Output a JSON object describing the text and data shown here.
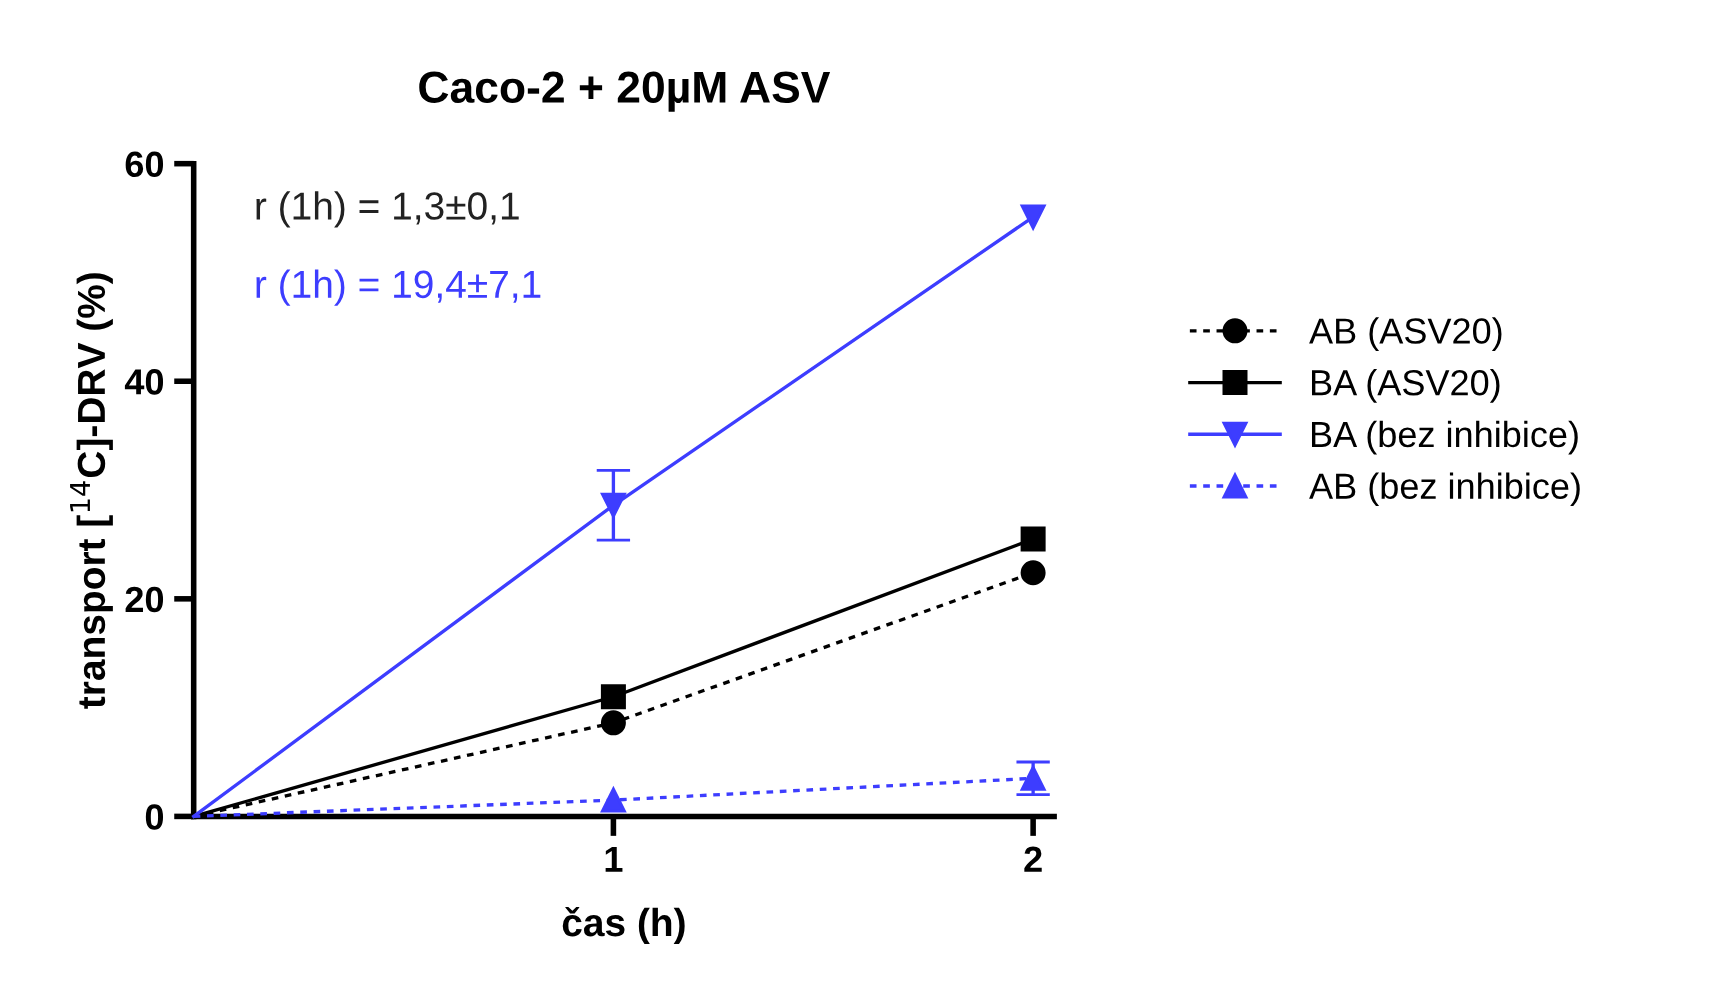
{
  "chart_data": {
    "type": "line",
    "title": "Caco-2 + 20µM ASV",
    "xlabel": "čas (h)",
    "ylabel": "transport [$^{14}$C]-DRV (%)",
    "x": [
      0,
      1,
      2
    ],
    "xlim": [
      0,
      2.05
    ],
    "xticks": [
      1,
      2
    ],
    "ylim": [
      0,
      60
    ],
    "yticks": [
      0,
      20,
      40,
      60
    ],
    "grid": false,
    "legend": "right",
    "annotations": [
      "r (1h) = 1,3±0,1",
      "r (1h) = 19,4±7,1"
    ],
    "series": [
      {
        "name": "AB (ASV20)",
        "color": "#000000",
        "values": [
          0,
          8.6,
          22.4
        ],
        "marker": "circle",
        "line_style": "dotted"
      },
      {
        "name": "BA (ASV20)",
        "color": "#000000",
        "values": [
          0,
          11.0,
          25.5
        ],
        "marker": "square",
        "line_style": "solid"
      },
      {
        "name": "BA (bez inhibice)",
        "color": "#3d3dff",
        "values": [
          0,
          28.6,
          55.1
        ],
        "errors": [
          null,
          3.2,
          null
        ],
        "marker": "triangle_down",
        "line_style": "solid"
      },
      {
        "name": "AB (bez inhibice)",
        "color": "#3d3dff",
        "values": [
          0,
          1.5,
          3.5
        ],
        "errors": [
          null,
          null,
          1.5
        ],
        "marker": "triangle",
        "line_style": "dotted"
      }
    ]
  }
}
